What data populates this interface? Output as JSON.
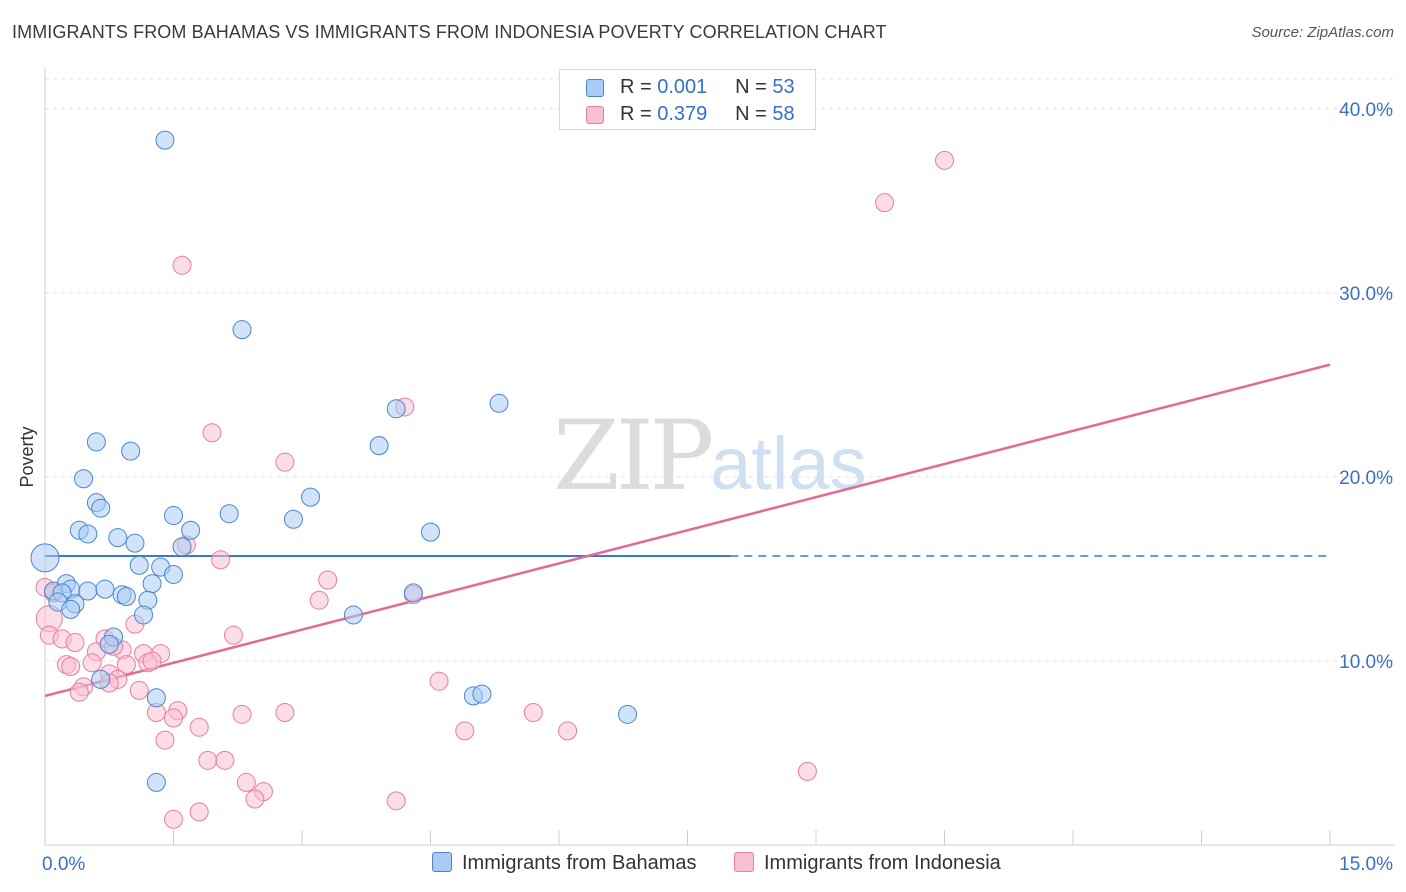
{
  "header": {
    "title": "IMMIGRANTS FROM BAHAMAS VS IMMIGRANTS FROM INDONESIA POVERTY CORRELATION CHART",
    "source": "Source: ZipAtlas.com"
  },
  "watermark": {
    "zip": "ZIP",
    "atlas": "atlas"
  },
  "legend_top": [
    {
      "r_label": "R =",
      "r_value": "0.001",
      "n_label": "N =",
      "n_value": "53"
    },
    {
      "r_label": "R =",
      "r_value": "0.379",
      "n_label": "N =",
      "n_value": "58"
    }
  ],
  "colors": {
    "blue_fill": "#aaccf4",
    "blue_stroke": "#4a86d0",
    "blue_line": "#3a78c9",
    "pink_fill": "#f9c0d2",
    "pink_stroke": "#e87fa0",
    "pink_line": "#e26b95",
    "axis_label": "#3a70c2",
    "grid": "#e0e0e0"
  },
  "chart_data": {
    "type": "scatter",
    "title": "IMMIGRANTS FROM BAHAMAS VS IMMIGRANTS FROM INDONESIA POVERTY CORRELATION CHART",
    "ylabel": "Poverty",
    "xlabel": "",
    "xlim": [
      0,
      15
    ],
    "ylim": [
      0,
      42
    ],
    "x_tick_labels": [
      {
        "value": 0,
        "label": "0.0%"
      },
      {
        "value": 15,
        "label": "15.0%"
      }
    ],
    "y_tick_labels": [
      {
        "value": 10,
        "label": "10.0%"
      },
      {
        "value": 20,
        "label": "20.0%"
      },
      {
        "value": 30,
        "label": "30.0%"
      },
      {
        "value": 40,
        "label": "40.0%"
      }
    ],
    "x_minor_ticks": [
      1.5,
      3.0,
      4.5,
      6.0,
      7.5,
      9.0,
      10.5,
      12.0,
      13.5,
      15.0
    ],
    "series": [
      {
        "name": "Immigrants from Bahamas",
        "R": 0.001,
        "N": 53,
        "trend": {
          "x_start": 0,
          "x_end": 8.0,
          "y_start": 15.7,
          "y_end": 15.7,
          "dashed_to_x": 15,
          "dashed_y": 15.7
        },
        "points": [
          [
            1.4,
            38.3
          ],
          [
            2.3,
            28.0
          ],
          [
            5.3,
            24.0
          ],
          [
            4.1,
            23.7
          ],
          [
            0.6,
            21.9
          ],
          [
            1.0,
            21.4
          ],
          [
            3.9,
            21.7
          ],
          [
            0.45,
            19.9
          ],
          [
            3.1,
            18.9
          ],
          [
            0.6,
            18.6
          ],
          [
            0.65,
            18.3
          ],
          [
            1.5,
            17.9
          ],
          [
            2.15,
            18.0
          ],
          [
            2.9,
            17.7
          ],
          [
            0.4,
            17.1
          ],
          [
            0.5,
            16.9
          ],
          [
            0.85,
            16.7
          ],
          [
            1.05,
            16.4
          ],
          [
            1.6,
            16.2
          ],
          [
            1.7,
            17.1
          ],
          [
            4.5,
            17.0
          ],
          [
            0.0,
            15.6
          ],
          [
            1.1,
            15.2
          ],
          [
            1.35,
            15.1
          ],
          [
            1.5,
            14.7
          ],
          [
            0.25,
            14.2
          ],
          [
            0.3,
            13.9
          ],
          [
            1.25,
            14.2
          ],
          [
            0.1,
            13.8
          ],
          [
            0.2,
            13.7
          ],
          [
            0.5,
            13.8
          ],
          [
            0.7,
            13.9
          ],
          [
            0.9,
            13.6
          ],
          [
            1.2,
            13.3
          ],
          [
            0.15,
            13.2
          ],
          [
            0.35,
            13.1
          ],
          [
            0.95,
            13.5
          ],
          [
            3.6,
            12.5
          ],
          [
            4.3,
            13.7
          ],
          [
            0.3,
            12.8
          ],
          [
            1.15,
            12.5
          ],
          [
            0.8,
            11.3
          ],
          [
            0.75,
            10.9
          ],
          [
            0.65,
            9.0
          ],
          [
            1.3,
            8.0
          ],
          [
            5.0,
            8.1
          ],
          [
            5.1,
            8.2
          ],
          [
            6.8,
            7.1
          ],
          [
            1.3,
            3.4
          ]
        ]
      },
      {
        "name": "Immigrants from Indonesia",
        "R": 0.379,
        "N": 58,
        "trend": {
          "x_start": 0,
          "x_end": 15,
          "y_start": 8.1,
          "y_end": 26.1
        },
        "points": [
          [
            10.5,
            37.2
          ],
          [
            9.8,
            34.9
          ],
          [
            1.6,
            31.5
          ],
          [
            4.2,
            23.8
          ],
          [
            1.95,
            22.4
          ],
          [
            2.8,
            20.8
          ],
          [
            1.65,
            16.3
          ],
          [
            2.05,
            15.5
          ],
          [
            3.3,
            14.4
          ],
          [
            0.0,
            14.0
          ],
          [
            0.1,
            13.7
          ],
          [
            4.3,
            13.6
          ],
          [
            3.2,
            13.3
          ],
          [
            0.05,
            12.3
          ],
          [
            1.05,
            12.0
          ],
          [
            0.05,
            11.4
          ],
          [
            0.2,
            11.2
          ],
          [
            2.2,
            11.4
          ],
          [
            0.35,
            11.0
          ],
          [
            0.7,
            11.2
          ],
          [
            0.6,
            10.5
          ],
          [
            0.9,
            10.6
          ],
          [
            0.8,
            10.8
          ],
          [
            1.15,
            10.4
          ],
          [
            1.35,
            10.4
          ],
          [
            0.25,
            9.8
          ],
          [
            0.3,
            9.7
          ],
          [
            0.55,
            9.9
          ],
          [
            0.95,
            9.8
          ],
          [
            1.2,
            9.9
          ],
          [
            1.25,
            10.0
          ],
          [
            0.75,
            9.3
          ],
          [
            0.85,
            9.0
          ],
          [
            0.45,
            8.6
          ],
          [
            0.75,
            8.8
          ],
          [
            4.6,
            8.9
          ],
          [
            0.4,
            8.3
          ],
          [
            1.1,
            8.4
          ],
          [
            1.3,
            7.2
          ],
          [
            1.55,
            7.3
          ],
          [
            1.5,
            6.9
          ],
          [
            2.3,
            7.1
          ],
          [
            2.8,
            7.2
          ],
          [
            5.7,
            7.2
          ],
          [
            1.8,
            6.4
          ],
          [
            4.9,
            6.2
          ],
          [
            6.1,
            6.2
          ],
          [
            1.4,
            5.7
          ],
          [
            1.9,
            4.6
          ],
          [
            2.1,
            4.6
          ],
          [
            2.35,
            3.4
          ],
          [
            2.55,
            2.9
          ],
          [
            8.9,
            4.0
          ],
          [
            2.45,
            2.5
          ],
          [
            4.1,
            2.4
          ],
          [
            1.8,
            1.8
          ],
          [
            1.5,
            1.4
          ]
        ]
      }
    ]
  },
  "bottom_legend": [
    {
      "label": "Immigrants from Bahamas"
    },
    {
      "label": "Immigrants from Indonesia"
    }
  ]
}
